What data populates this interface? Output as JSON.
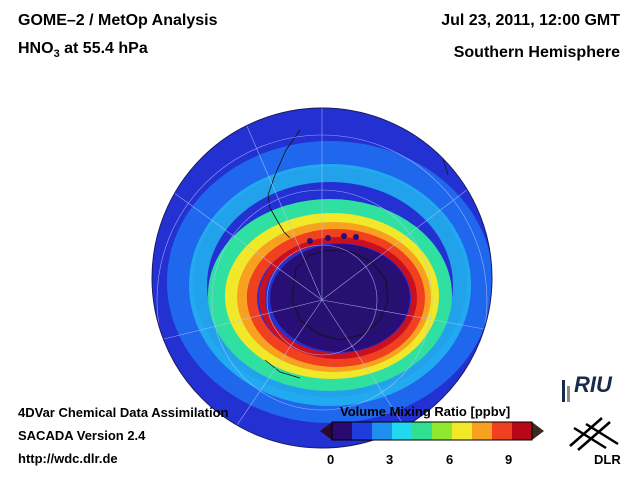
{
  "header": {
    "title": "GOME–2 / MetOp Analysis",
    "species_prefix": "HNO",
    "species_subscript": "3",
    "species_suffix": " at 55.4 hPa",
    "date": "Jul 23, 2011, 12:00 GMT",
    "hemisphere": "Southern Hemisphere"
  },
  "footer": {
    "line1": "4DVar Chemical Data Assimilation",
    "line2": "SACADA Version 2.4",
    "line3": "http://wdc.dlr.de"
  },
  "colorbar": {
    "title": "Volume Mixing Ratio [ppbv]",
    "ticks": [
      "0",
      "3",
      "6",
      "9"
    ],
    "colors": [
      "#2a0a6e",
      "#1f3cdc",
      "#1e8ef0",
      "#20d8f0",
      "#30e090",
      "#90e830",
      "#f0e828",
      "#f8a020",
      "#f04020",
      "#b80818"
    ]
  },
  "logos": {
    "riu": "RIU",
    "dlr": "DLR"
  }
}
